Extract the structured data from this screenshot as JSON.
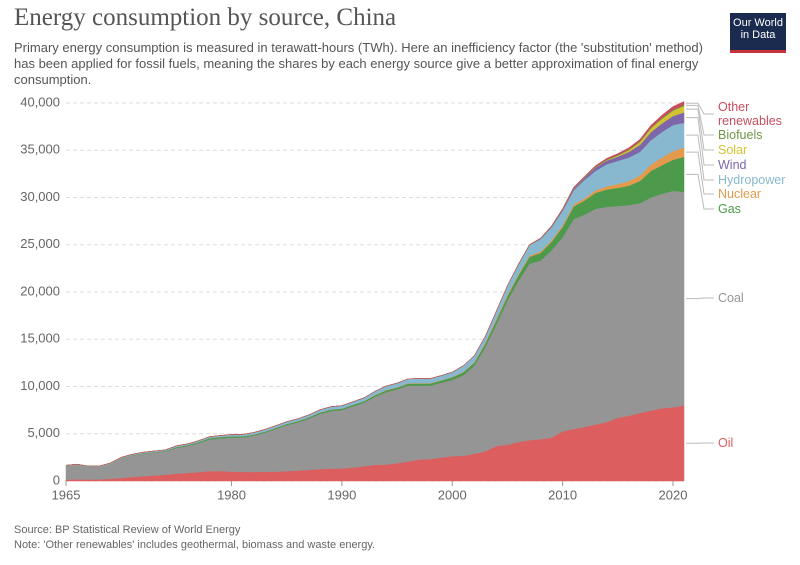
{
  "chart_data": {
    "type": "stacked-area",
    "title": "Energy consumption by source, China",
    "subtitle": "Primary energy consumption is measured in terawatt-hours (TWh). Here an inefficiency factor (the 'substitution' method) has been applied for fossil fuels, meaning the shares by each energy source give a better approximation of final energy consumption.",
    "logo": "Our World in Data",
    "source": "Source: BP Statistical Review of World Energy",
    "note": "Note: 'Other renewables' includes geothermal, biomass and waste energy.",
    "x": [
      1965,
      1966,
      1967,
      1968,
      1969,
      1970,
      1971,
      1972,
      1973,
      1974,
      1975,
      1976,
      1977,
      1978,
      1979,
      1980,
      1981,
      1982,
      1983,
      1984,
      1985,
      1986,
      1987,
      1988,
      1989,
      1990,
      1991,
      1992,
      1993,
      1994,
      1995,
      1996,
      1997,
      1998,
      1999,
      2000,
      2001,
      2002,
      2003,
      2004,
      2005,
      2006,
      2007,
      2008,
      2009,
      2010,
      2011,
      2012,
      2013,
      2014,
      2015,
      2016,
      2017,
      2018,
      2019,
      2020,
      2021
    ],
    "xlim": [
      1965,
      2021
    ],
    "xticks": [
      1965,
      1980,
      1990,
      2000,
      2010,
      2020
    ],
    "ylim": [
      0,
      40000
    ],
    "yticks": [
      0,
      {
        "value": 5000,
        "label": "5,000"
      },
      {
        "value": 10000,
        "label": "10,000"
      },
      {
        "value": 15000,
        "label": "15,000"
      },
      {
        "value": 20000,
        "label": "20,000"
      },
      {
        "value": 25000,
        "label": "25,000"
      },
      {
        "value": 30000,
        "label": "30,000"
      },
      {
        "value": 35000,
        "label": "35,000"
      },
      {
        "value": 40000,
        "label": "40,000"
      }
    ],
    "grid": true,
    "series": [
      {
        "name": "Oil",
        "color": "#dc5e5e",
        "values": [
          150,
          170,
          160,
          170,
          230,
          320,
          420,
          500,
          580,
          670,
          780,
          850,
          940,
          1050,
          1060,
          1000,
          960,
          950,
          970,
          990,
          1050,
          1100,
          1170,
          1260,
          1320,
          1320,
          1430,
          1560,
          1720,
          1750,
          1880,
          2070,
          2280,
          2320,
          2490,
          2630,
          2670,
          2880,
          3150,
          3700,
          3830,
          4130,
          4330,
          4420,
          4580,
          5260,
          5490,
          5730,
          5980,
          6240,
          6690,
          6900,
          7200,
          7450,
          7700,
          7800,
          8000
        ]
      },
      {
        "name": "Coal",
        "color": "#959595",
        "values": [
          1450,
          1530,
          1340,
          1330,
          1570,
          2080,
          2280,
          2400,
          2420,
          2430,
          2720,
          2850,
          3060,
          3350,
          3440,
          3600,
          3640,
          3850,
          4130,
          4510,
          4850,
          5100,
          5430,
          5840,
          6080,
          6180,
          6470,
          6740,
          7180,
          7650,
          7820,
          8030,
          7820,
          7780,
          7910,
          8070,
          8530,
          9320,
          11050,
          12900,
          15270,
          17070,
          18670,
          18880,
          19820,
          20540,
          22210,
          22470,
          22820,
          22760,
          22410,
          22300,
          22200,
          22550,
          22700,
          22900,
          22600
        ]
      },
      {
        "name": "Gas",
        "color": "#4e9a4c",
        "values": [
          10,
          15,
          15,
          15,
          20,
          30,
          40,
          50,
          60,
          80,
          100,
          110,
          130,
          150,
          160,
          150,
          140,
          130,
          130,
          130,
          140,
          150,
          150,
          160,
          170,
          170,
          170,
          170,
          180,
          190,
          190,
          210,
          220,
          220,
          230,
          270,
          300,
          320,
          370,
          430,
          480,
          580,
          720,
          830,
          920,
          1070,
          1350,
          1490,
          1700,
          1860,
          1920,
          2050,
          2350,
          2800,
          3020,
          3300,
          3700
        ]
      },
      {
        "name": "Nuclear",
        "color": "#e39a4c",
        "values": [
          0,
          0,
          0,
          0,
          0,
          0,
          0,
          0,
          0,
          0,
          0,
          0,
          0,
          0,
          0,
          0,
          0,
          0,
          0,
          0,
          0,
          0,
          0,
          0,
          0,
          0,
          0,
          0,
          30,
          35,
          35,
          40,
          40,
          40,
          40,
          45,
          50,
          60,
          105,
          120,
          130,
          130,
          150,
          160,
          170,
          190,
          210,
          240,
          270,
          330,
          400,
          500,
          580,
          690,
          800,
          900,
          1000
        ]
      },
      {
        "name": "Hydropower",
        "color": "#88b8cf",
        "values": [
          50,
          60,
          60,
          60,
          70,
          80,
          90,
          100,
          110,
          110,
          120,
          120,
          130,
          140,
          160,
          170,
          180,
          200,
          220,
          220,
          230,
          230,
          240,
          270,
          290,
          310,
          310,
          330,
          380,
          420,
          440,
          460,
          480,
          490,
          480,
          510,
          650,
          670,
          650,
          820,
          920,
          1000,
          1090,
          1300,
          1370,
          1530,
          1500,
          1940,
          2060,
          2330,
          2450,
          2480,
          2500,
          2570,
          2710,
          2770,
          2600
        ]
      },
      {
        "name": "Wind",
        "color": "#7d66a9",
        "values": [
          0,
          0,
          0,
          0,
          0,
          0,
          0,
          0,
          0,
          0,
          0,
          0,
          0,
          0,
          0,
          0,
          0,
          0,
          0,
          0,
          0,
          0,
          0,
          0,
          0,
          0,
          0,
          0,
          0,
          0,
          0,
          0,
          0,
          0,
          0,
          0,
          0,
          0,
          0,
          0,
          5,
          10,
          15,
          35,
          70,
          120,
          180,
          240,
          350,
          380,
          460,
          600,
          740,
          860,
          900,
          950,
          1100
        ]
      },
      {
        "name": "Solar",
        "color": "#d1c331",
        "values": [
          0,
          0,
          0,
          0,
          0,
          0,
          0,
          0,
          0,
          0,
          0,
          0,
          0,
          0,
          0,
          0,
          0,
          0,
          0,
          0,
          0,
          0,
          0,
          0,
          0,
          0,
          0,
          0,
          0,
          0,
          0,
          0,
          0,
          0,
          0,
          0,
          0,
          0,
          0,
          0,
          0,
          0,
          0,
          0,
          0,
          5,
          10,
          15,
          40,
          60,
          110,
          190,
          300,
          400,
          500,
          580,
          700
        ]
      },
      {
        "name": "Biofuels",
        "color": "#6f9446",
        "values": [
          0,
          0,
          0,
          0,
          0,
          0,
          0,
          0,
          0,
          0,
          0,
          0,
          0,
          0,
          0,
          0,
          0,
          0,
          0,
          0,
          0,
          0,
          0,
          0,
          0,
          0,
          0,
          0,
          0,
          0,
          0,
          0,
          0,
          0,
          0,
          0,
          0,
          10,
          10,
          15,
          20,
          30,
          30,
          40,
          40,
          50,
          50,
          50,
          60,
          70,
          70,
          80,
          80,
          80,
          90,
          90,
          100
        ]
      },
      {
        "name": "Other renewables",
        "color": "#c84d5e",
        "values": [
          0,
          0,
          0,
          0,
          0,
          0,
          0,
          0,
          0,
          0,
          0,
          0,
          0,
          0,
          0,
          0,
          0,
          0,
          0,
          0,
          0,
          0,
          0,
          0,
          0,
          0,
          0,
          0,
          0,
          0,
          0,
          0,
          0,
          0,
          0,
          10,
          10,
          10,
          10,
          15,
          20,
          20,
          25,
          35,
          50,
          60,
          80,
          90,
          110,
          120,
          140,
          160,
          200,
          240,
          290,
          340,
          360
        ]
      }
    ]
  }
}
